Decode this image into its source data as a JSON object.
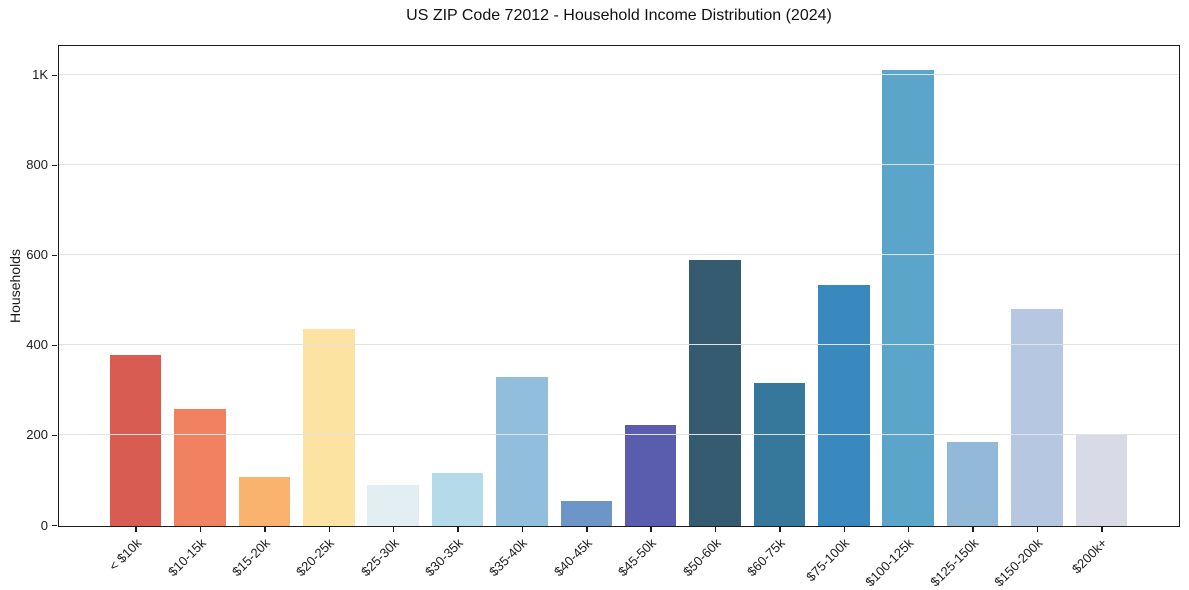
{
  "title": "US ZIP Code 72012 - Household Income Distribution (2024)",
  "y_axis": {
    "label": "Households",
    "tick_labels": [
      "0",
      "200",
      "400",
      "600",
      "800",
      "1K"
    ]
  },
  "chart_data": {
    "type": "bar",
    "title": "US ZIP Code 72012 - Household Income Distribution (2024)",
    "xlabel": "",
    "ylabel": "Households",
    "categories": [
      "< $10k",
      "$10-15k",
      "$15-20k",
      "$20-25k",
      "$25-30k",
      "$30-35k",
      "$35-40k",
      "$40-45k",
      "$45-50k",
      "$50-60k",
      "$60-75k",
      "$75-100k",
      "$100-125k",
      "$125-150k",
      "$150-200k",
      "$200k+"
    ],
    "values": [
      380,
      260,
      109,
      438,
      91,
      117,
      332,
      56,
      224,
      590,
      318,
      536,
      1012,
      187,
      481,
      203
    ],
    "bar_colors": [
      "#d95c53",
      "#f08261",
      "#fab36e",
      "#fce3a1",
      "#e3eef3",
      "#b5dbea",
      "#92bedd",
      "#6d95c8",
      "#5a5cae",
      "#355b70",
      "#36789c",
      "#3989bf",
      "#5ba5cb",
      "#92b9d8",
      "#b6c8e1",
      "#d8dae7"
    ],
    "yticks": [
      {
        "value": 0,
        "label": "0"
      },
      {
        "value": 200,
        "label": "200"
      },
      {
        "value": 400,
        "label": "400"
      },
      {
        "value": 600,
        "label": "600"
      },
      {
        "value": 800,
        "label": "800"
      },
      {
        "value": 1000,
        "label": "1K"
      }
    ],
    "ylim": [
      0,
      1064
    ],
    "grid": "horizontal",
    "grid_above_bars": true,
    "gridline_color": "#e2e2e2",
    "background_color": "#ffffff",
    "spine_color": "#1c1c1c",
    "x_tick_rotation_deg": 45,
    "legend": "none"
  }
}
